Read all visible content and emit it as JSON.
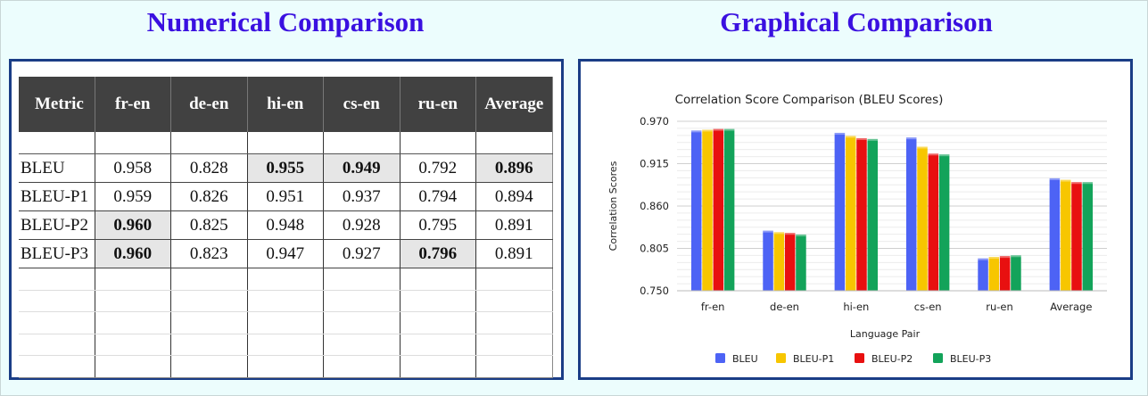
{
  "titles": {
    "numerical": "Numerical Comparison",
    "graphical": "Graphical Comparison"
  },
  "table": {
    "headers": [
      "Metric",
      "fr-en",
      "de-en",
      "hi-en",
      "cs-en",
      "ru-en",
      "Average"
    ],
    "rows": [
      {
        "metric": "BLEU",
        "values": [
          "0.958",
          "0.828",
          "0.955",
          "0.949",
          "0.792",
          "0.896"
        ],
        "bold": [
          false,
          false,
          true,
          true,
          false,
          true
        ]
      },
      {
        "metric": "BLEU-P1",
        "values": [
          "0.959",
          "0.826",
          "0.951",
          "0.937",
          "0.794",
          "0.894"
        ],
        "bold": [
          false,
          false,
          false,
          false,
          false,
          false
        ]
      },
      {
        "metric": "BLEU-P2",
        "values": [
          "0.960",
          "0.825",
          "0.948",
          "0.928",
          "0.795",
          "0.891"
        ],
        "bold": [
          true,
          false,
          false,
          false,
          false,
          false
        ]
      },
      {
        "metric": "BLEU-P3",
        "values": [
          "0.960",
          "0.823",
          "0.947",
          "0.927",
          "0.796",
          "0.891"
        ],
        "bold": [
          true,
          false,
          false,
          false,
          true,
          false
        ]
      }
    ]
  },
  "chart_data": {
    "type": "bar",
    "title": "Correlation Score Comparison (BLEU Scores)",
    "xlabel": "Language Pair",
    "ylabel": "Correlation Scores",
    "categories": [
      "fr-en",
      "de-en",
      "hi-en",
      "cs-en",
      "ru-en",
      "Average"
    ],
    "ylim": [
      0.75,
      0.97
    ],
    "yticks": [
      "0.970",
      "0.915",
      "0.860",
      "0.805",
      "0.750"
    ],
    "grid": true,
    "legend_position": "bottom",
    "series": [
      {
        "name": "BLEU",
        "color": "#4d63f5",
        "values": [
          0.958,
          0.828,
          0.955,
          0.949,
          0.792,
          0.896
        ]
      },
      {
        "name": "BLEU-P1",
        "color": "#f7c600",
        "values": [
          0.959,
          0.826,
          0.951,
          0.937,
          0.794,
          0.894
        ]
      },
      {
        "name": "BLEU-P2",
        "color": "#e81010",
        "values": [
          0.96,
          0.825,
          0.948,
          0.928,
          0.795,
          0.891
        ]
      },
      {
        "name": "BLEU-P3",
        "color": "#13a35a",
        "values": [
          0.96,
          0.823,
          0.947,
          0.927,
          0.796,
          0.891
        ]
      }
    ]
  }
}
